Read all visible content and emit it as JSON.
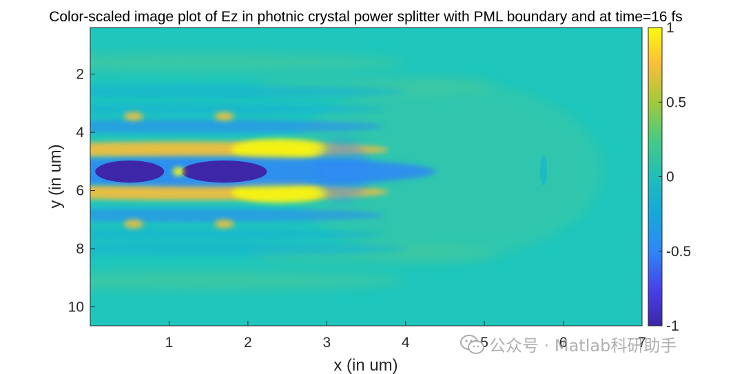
{
  "chart_data": {
    "type": "heatmap",
    "title": "Color-scaled image plot of Ez in photnic crystal power splitter with PML boundary and at time=16 fs",
    "xlabel": "x (in um)",
    "ylabel": "y (in um)",
    "xlim": [
      0,
      7
    ],
    "ylim": [
      10.65,
      0.4
    ],
    "y_direction": "reversed",
    "x_ticks": [
      1,
      2,
      3,
      4,
      5,
      6,
      7
    ],
    "y_ticks": [
      2,
      4,
      6,
      8,
      10
    ],
    "colormap": "parula",
    "clim": [
      -1,
      1
    ],
    "colorbar_ticks": [
      -1,
      -0.5,
      0,
      0.5,
      1
    ],
    "colorbar_tick_labels": [
      "-1",
      "-0.5",
      "0",
      "0.5",
      "1"
    ],
    "field_features": [
      {
        "kind": "minimum",
        "x": 0.5,
        "y": 5.35,
        "value": -1.0
      },
      {
        "kind": "minimum",
        "x": 1.7,
        "y": 5.35,
        "value": -1.0
      },
      {
        "kind": "maximum",
        "x": 1.12,
        "y": 5.35,
        "value": 1.0
      },
      {
        "kind": "maximum",
        "x": 2.4,
        "y": 4.65,
        "value": 0.8
      },
      {
        "kind": "maximum",
        "x": 2.4,
        "y": 6.05,
        "value": 0.8
      },
      {
        "kind": "minimum",
        "x": 3.2,
        "y": 5.3,
        "value": -0.35
      }
    ]
  },
  "watermark": {
    "text": "公众号 · Matlab科研助手",
    "icon": "wechat-icon"
  }
}
